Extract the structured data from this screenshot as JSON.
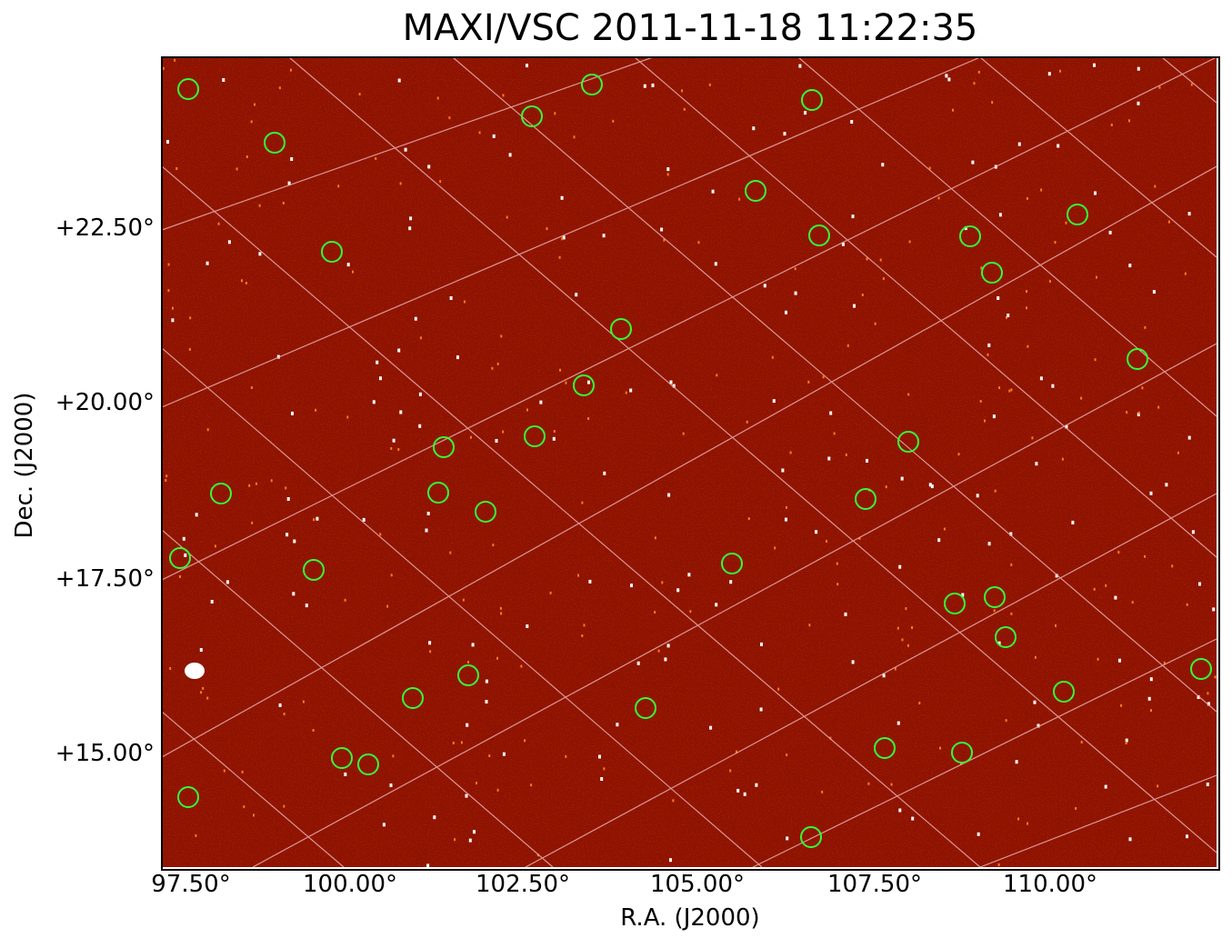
{
  "title": "MAXI/VSC 2011-11-18 11:22:35",
  "xlabel": "R.A. (J2000)",
  "ylabel": "Dec. (J2000)",
  "x_ticks": [
    "97.50°",
    "100.00°",
    "102.50°",
    "105.00°",
    "107.50°",
    "110.00°"
  ],
  "y_ticks": [
    "+22.50°",
    "+20.00°",
    "+17.50°",
    "+15.00°"
  ],
  "colors": {
    "background_image": "#8e1200",
    "grid": "#e8b0b0",
    "marker_circle": "#33ff33",
    "hot_pixel": "#ffffff",
    "warm_pixel": "#ff7a1a"
  }
}
